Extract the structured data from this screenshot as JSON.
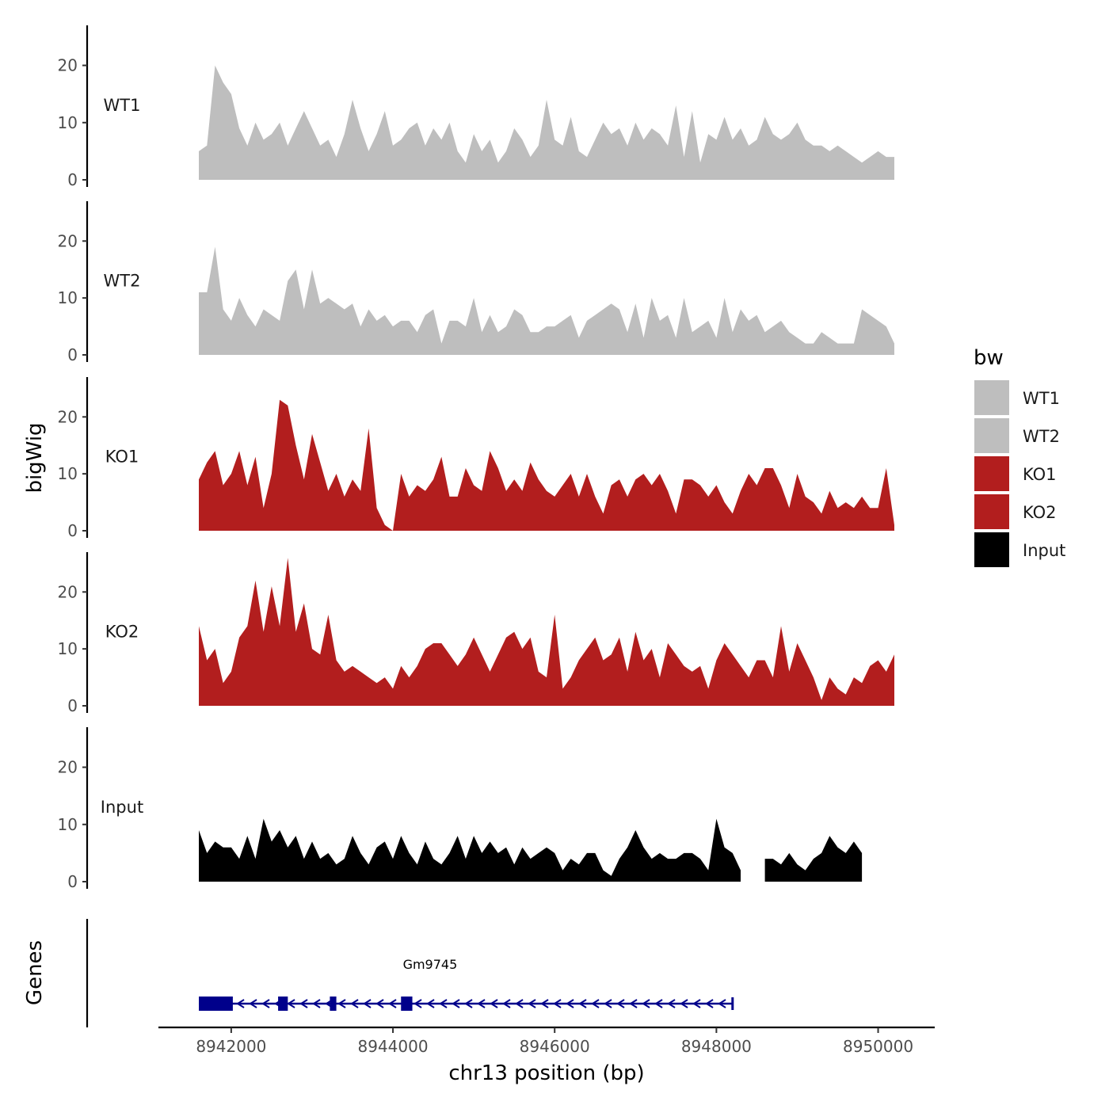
{
  "chart_data": {
    "type": "area",
    "chromosome": "chr13",
    "xlabel": "chr13 position (bp)",
    "ylabel": "bigWig",
    "genes_label": "Genes",
    "xlim": [
      8941100,
      8950700
    ],
    "ylim": [
      0,
      27
    ],
    "x_ticks": [
      {
        "value": 8942000,
        "label": "8942000"
      },
      {
        "value": 8944000,
        "label": "8944000"
      },
      {
        "value": 8946000,
        "label": "8946000"
      },
      {
        "value": 8948000,
        "label": "8948000"
      },
      {
        "value": 8950000,
        "label": "8950000"
      }
    ],
    "y_ticks": [
      {
        "value": 0,
        "label": "0"
      },
      {
        "value": 10,
        "label": "10"
      },
      {
        "value": 20,
        "label": "20"
      }
    ],
    "legend": {
      "title": "bw",
      "entries": [
        {
          "label": "WT1",
          "color": "#bebebe"
        },
        {
          "label": "WT2",
          "color": "#bebebe"
        },
        {
          "label": "KO1",
          "color": "#b21e1e"
        },
        {
          "label": "KO2",
          "color": "#b21e1e"
        },
        {
          "label": "Input",
          "color": "#000000"
        }
      ]
    },
    "series": [
      {
        "name": "WT1",
        "color": "#bebebe",
        "x": [
          8941600,
          8941700,
          8941800,
          8941900,
          8942000,
          8942100,
          8942200,
          8942300,
          8942400,
          8942500,
          8942600,
          8942700,
          8942800,
          8942900,
          8943000,
          8943100,
          8943200,
          8943300,
          8943400,
          8943500,
          8943600,
          8943700,
          8943800,
          8943900,
          8944000,
          8944100,
          8944200,
          8944300,
          8944400,
          8944500,
          8944600,
          8944700,
          8944800,
          8944900,
          8945000,
          8945100,
          8945200,
          8945300,
          8945400,
          8945500,
          8945600,
          8945700,
          8945800,
          8945900,
          8946000,
          8946100,
          8946200,
          8946300,
          8946400,
          8946500,
          8946600,
          8946700,
          8946800,
          8946900,
          8947000,
          8947100,
          8947200,
          8947300,
          8947400,
          8947500,
          8947600,
          8947700,
          8947800,
          8947900,
          8948000,
          8948100,
          8948200,
          8948300,
          8948400,
          8948500,
          8948600,
          8948700,
          8948800,
          8948900,
          8949000,
          8949100,
          8949200,
          8949300,
          8949400,
          8949500,
          8949600,
          8949700,
          8949800,
          8949900,
          8950000,
          8950100,
          8950200
        ],
        "values": [
          5,
          6,
          20,
          17,
          15,
          9,
          6,
          10,
          7,
          8,
          10,
          6,
          9,
          12,
          9,
          6,
          7,
          4,
          8,
          14,
          9,
          5,
          8,
          12,
          6,
          7,
          9,
          10,
          6,
          9,
          7,
          10,
          5,
          3,
          8,
          5,
          7,
          3,
          5,
          9,
          7,
          4,
          6,
          14,
          7,
          6,
          11,
          5,
          4,
          7,
          10,
          8,
          9,
          6,
          10,
          7,
          9,
          8,
          6,
          13,
          4,
          12,
          3,
          8,
          7,
          11,
          7,
          9,
          6,
          7,
          11,
          8,
          7,
          8,
          10,
          7,
          6,
          6,
          5,
          6,
          5,
          4,
          3,
          4,
          5,
          4,
          4
        ]
      },
      {
        "name": "WT2",
        "color": "#bebebe",
        "x": [
          8941600,
          8941700,
          8941800,
          8941900,
          8942000,
          8942100,
          8942200,
          8942300,
          8942400,
          8942500,
          8942600,
          8942700,
          8942800,
          8942900,
          8943000,
          8943100,
          8943200,
          8943300,
          8943400,
          8943500,
          8943600,
          8943700,
          8943800,
          8943900,
          8944000,
          8944100,
          8944200,
          8944300,
          8944400,
          8944500,
          8944600,
          8944700,
          8944800,
          8944900,
          8945000,
          8945100,
          8945200,
          8945300,
          8945400,
          8945500,
          8945600,
          8945700,
          8945800,
          8945900,
          8946000,
          8946100,
          8946200,
          8946300,
          8946400,
          8946500,
          8946600,
          8946700,
          8946800,
          8946900,
          8947000,
          8947100,
          8947200,
          8947300,
          8947400,
          8947500,
          8947600,
          8947700,
          8947800,
          8947900,
          8948000,
          8948100,
          8948200,
          8948300,
          8948400,
          8948500,
          8948600,
          8948700,
          8948800,
          8948900,
          8949000,
          8949100,
          8949200,
          8949300,
          8949400,
          8949500,
          8949600,
          8949700,
          8949800,
          8949900,
          8950000,
          8950100,
          8950200
        ],
        "values": [
          11,
          11,
          19,
          8,
          6,
          10,
          7,
          5,
          8,
          7,
          6,
          13,
          15,
          8,
          15,
          9,
          10,
          9,
          8,
          9,
          5,
          8,
          6,
          7,
          5,
          6,
          6,
          4,
          7,
          8,
          2,
          6,
          6,
          5,
          10,
          4,
          7,
          4,
          5,
          8,
          7,
          4,
          4,
          5,
          5,
          6,
          7,
          3,
          6,
          7,
          8,
          9,
          8,
          4,
          9,
          3,
          10,
          6,
          7,
          3,
          10,
          4,
          5,
          6,
          3,
          10,
          4,
          8,
          6,
          7,
          4,
          5,
          6,
          4,
          3,
          2,
          2,
          4,
          3,
          2,
          2,
          2,
          8,
          7,
          6,
          5,
          2
        ]
      },
      {
        "name": "KO1",
        "color": "#b21e1e",
        "x": [
          8941600,
          8941700,
          8941800,
          8941900,
          8942000,
          8942100,
          8942200,
          8942300,
          8942400,
          8942500,
          8942600,
          8942700,
          8942800,
          8942900,
          8943000,
          8943100,
          8943200,
          8943300,
          8943400,
          8943500,
          8943600,
          8943700,
          8943800,
          8943900,
          8944000,
          8944100,
          8944200,
          8944300,
          8944400,
          8944500,
          8944600,
          8944700,
          8944800,
          8944900,
          8945000,
          8945100,
          8945200,
          8945300,
          8945400,
          8945500,
          8945600,
          8945700,
          8945800,
          8945900,
          8946000,
          8946100,
          8946200,
          8946300,
          8946400,
          8946500,
          8946600,
          8946700,
          8946800,
          8946900,
          8947000,
          8947100,
          8947200,
          8947300,
          8947400,
          8947500,
          8947600,
          8947700,
          8947800,
          8947900,
          8948000,
          8948100,
          8948200,
          8948300,
          8948400,
          8948500,
          8948600,
          8948700,
          8948800,
          8948900,
          8949000,
          8949100,
          8949200,
          8949300,
          8949400,
          8949500,
          8949600,
          8949700,
          8949800,
          8949900,
          8950000,
          8950100,
          8950200
        ],
        "values": [
          9,
          12,
          14,
          8,
          10,
          14,
          8,
          13,
          4,
          10,
          23,
          22,
          15,
          9,
          17,
          12,
          7,
          10,
          6,
          9,
          7,
          18,
          4,
          1,
          0,
          10,
          6,
          8,
          7,
          9,
          13,
          6,
          6,
          11,
          8,
          7,
          14,
          11,
          7,
          9,
          7,
          12,
          9,
          7,
          6,
          8,
          10,
          6,
          10,
          6,
          3,
          8,
          9,
          6,
          9,
          10,
          8,
          10,
          7,
          3,
          9,
          9,
          8,
          6,
          8,
          5,
          3,
          7,
          10,
          8,
          11,
          11,
          8,
          4,
          10,
          6,
          5,
          3,
          7,
          4,
          5,
          4,
          6,
          4,
          4,
          11,
          1
        ]
      },
      {
        "name": "KO2",
        "color": "#b21e1e",
        "x": [
          8941600,
          8941700,
          8941800,
          8941900,
          8942000,
          8942100,
          8942200,
          8942300,
          8942400,
          8942500,
          8942600,
          8942700,
          8942800,
          8942900,
          8943000,
          8943100,
          8943200,
          8943300,
          8943400,
          8943500,
          8943600,
          8943700,
          8943800,
          8943900,
          8944000,
          8944100,
          8944200,
          8944300,
          8944400,
          8944500,
          8944600,
          8944700,
          8944800,
          8944900,
          8945000,
          8945100,
          8945200,
          8945300,
          8945400,
          8945500,
          8945600,
          8945700,
          8945800,
          8945900,
          8946000,
          8946100,
          8946200,
          8946300,
          8946400,
          8946500,
          8946600,
          8946700,
          8946800,
          8946900,
          8947000,
          8947100,
          8947200,
          8947300,
          8947400,
          8947500,
          8947600,
          8947700,
          8947800,
          8947900,
          8948000,
          8948100,
          8948200,
          8948300,
          8948400,
          8948500,
          8948600,
          8948700,
          8948800,
          8948900,
          8949000,
          8949100,
          8949200,
          8949300,
          8949400,
          8949500,
          8949600,
          8949700,
          8949800,
          8949900,
          8950000,
          8950100,
          8950200
        ],
        "values": [
          14,
          8,
          10,
          4,
          6,
          12,
          14,
          22,
          13,
          21,
          14,
          26,
          13,
          18,
          10,
          9,
          16,
          8,
          6,
          7,
          6,
          5,
          4,
          5,
          3,
          7,
          5,
          7,
          10,
          11,
          11,
          9,
          7,
          9,
          12,
          9,
          6,
          9,
          12,
          13,
          10,
          12,
          6,
          5,
          16,
          3,
          5,
          8,
          10,
          12,
          8,
          9,
          12,
          6,
          13,
          8,
          10,
          5,
          11,
          9,
          7,
          6,
          7,
          3,
          8,
          11,
          9,
          7,
          5,
          8,
          8,
          5,
          14,
          6,
          11,
          8,
          5,
          1,
          5,
          3,
          2,
          5,
          4,
          7,
          8,
          6,
          9
        ]
      },
      {
        "name": "Input",
        "color": "#000000",
        "x": [
          8941600,
          8941700,
          8941800,
          8941900,
          8942000,
          8942100,
          8942200,
          8942300,
          8942400,
          8942500,
          8942600,
          8942700,
          8942800,
          8942900,
          8943000,
          8943100,
          8943200,
          8943300,
          8943400,
          8943500,
          8943600,
          8943700,
          8943800,
          8943900,
          8944000,
          8944100,
          8944200,
          8944300,
          8944400,
          8944500,
          8944600,
          8944700,
          8944800,
          8944900,
          8945000,
          8945100,
          8945200,
          8945300,
          8945400,
          8945500,
          8945600,
          8945700,
          8945800,
          8945900,
          8946000,
          8946100,
          8946200,
          8946300,
          8946400,
          8946500,
          8946600,
          8946700,
          8946800,
          8946900,
          8947000,
          8947100,
          8947200,
          8947300,
          8947400,
          8947500,
          8947600,
          8947700,
          8947800,
          8947900,
          8948000,
          8948100,
          8948200,
          8948300,
          8948400,
          8948500,
          8948600,
          8948700,
          8948800,
          8948900,
          8949000,
          8949100,
          8949200,
          8949300,
          8949400,
          8949500,
          8949600,
          8949700,
          8949800,
          8949900,
          8950000,
          8950100,
          8950200
        ],
        "values": [
          9,
          5,
          7,
          6,
          6,
          4,
          8,
          4,
          11,
          7,
          9,
          6,
          8,
          4,
          7,
          4,
          5,
          3,
          4,
          8,
          5,
          3,
          6,
          7,
          4,
          8,
          5,
          3,
          7,
          4,
          3,
          5,
          8,
          4,
          8,
          5,
          7,
          5,
          6,
          3,
          6,
          4,
          5,
          6,
          5,
          2,
          4,
          3,
          5,
          5,
          2,
          1,
          4,
          6,
          9,
          6,
          4,
          5,
          4,
          4,
          5,
          5,
          4,
          2,
          11,
          6,
          5,
          2,
          null,
          null,
          4,
          4,
          3,
          5,
          3,
          2,
          4,
          5,
          8,
          6,
          5,
          7,
          5,
          null,
          null,
          null,
          null
        ]
      }
    ],
    "gene": {
      "name": "Gm9745",
      "strand": "-",
      "start": 8941600,
      "end": 8948200,
      "exons": [
        [
          8941600,
          8942020
        ],
        [
          8942580,
          8942700
        ],
        [
          8943220,
          8943300
        ],
        [
          8944100,
          8944240
        ]
      ]
    }
  }
}
